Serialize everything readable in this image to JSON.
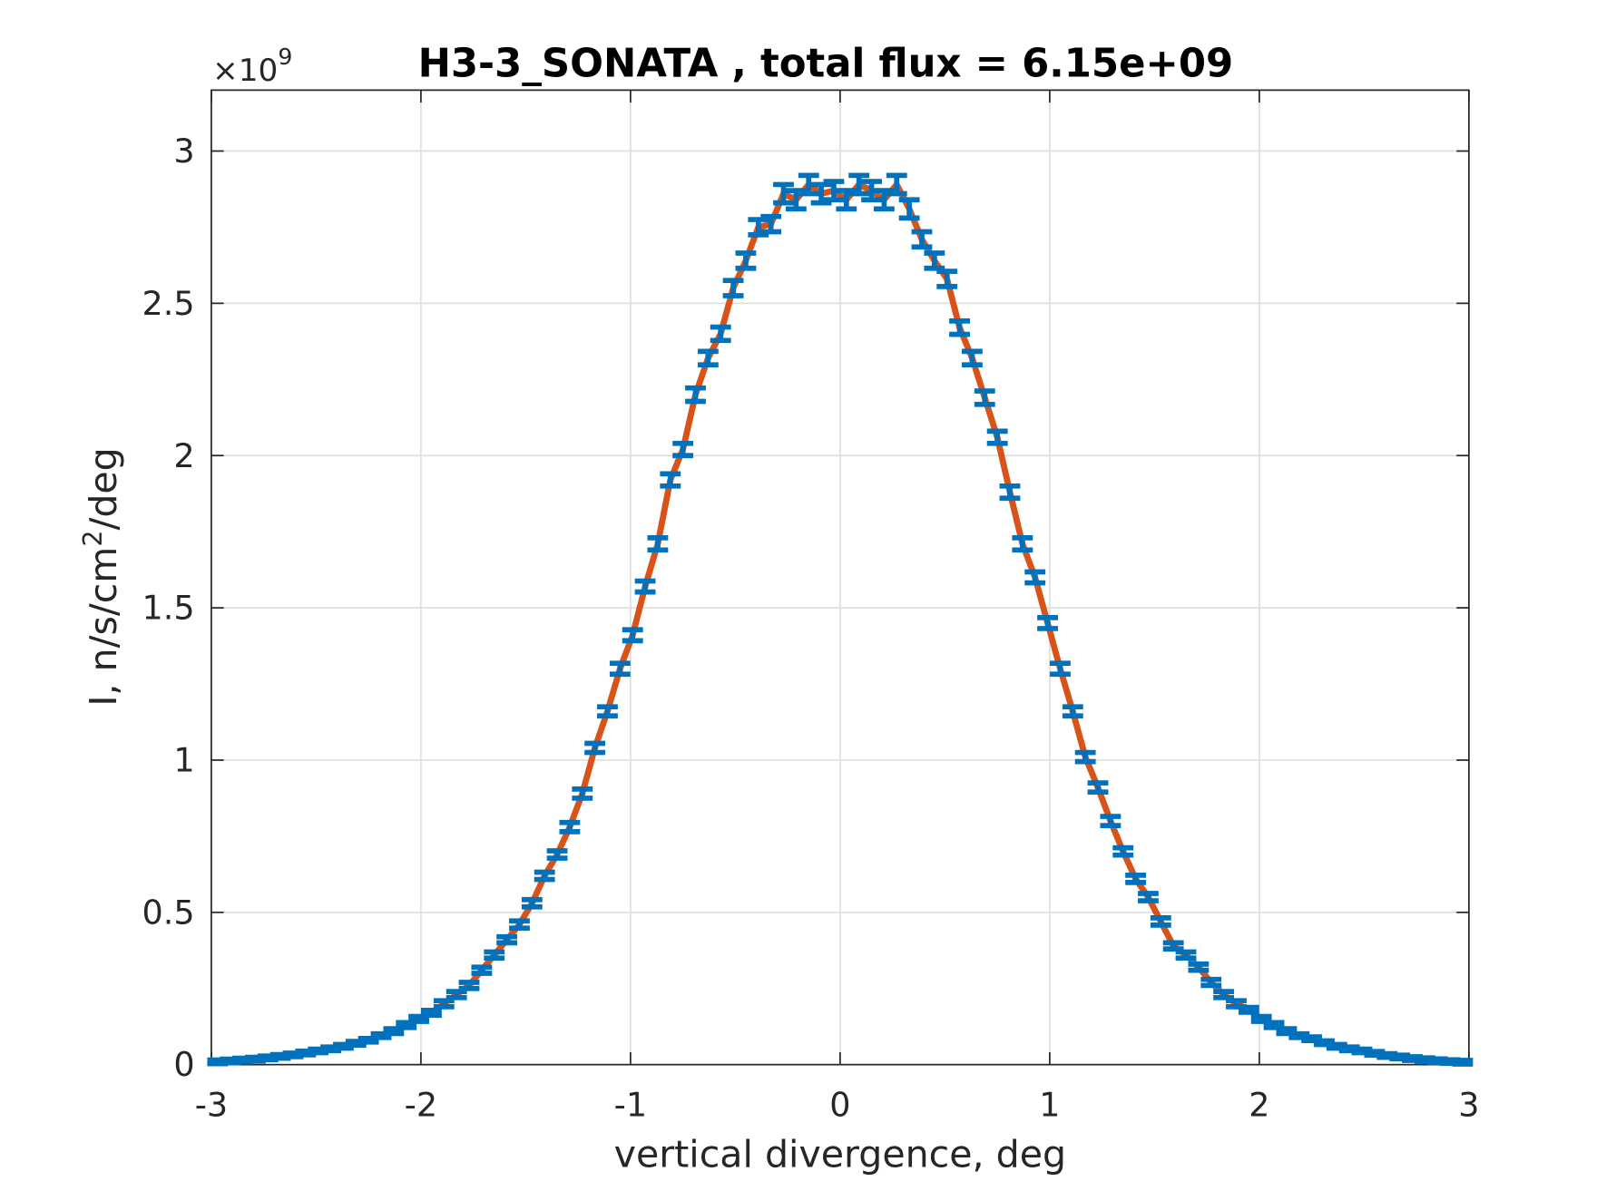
{
  "chart_data": {
    "type": "errorbar",
    "title": "H3-3_SONATA , total flux =  6.15e+09",
    "xlabel": "vertical divergence, deg",
    "ylabel": [
      "I, n/s/cm",
      "2",
      "/deg"
    ],
    "y_exponent": [
      "×10",
      "9"
    ],
    "xlim": [
      -3,
      3
    ],
    "ylim": [
      0,
      3.2
    ],
    "xticks": [
      -3,
      -2,
      -1,
      0,
      1,
      2,
      3
    ],
    "yticks": [
      0,
      0.5,
      1,
      1.5,
      2,
      2.5,
      3
    ],
    "grid": true,
    "x": [
      -2.97,
      -2.91,
      -2.85,
      -2.79,
      -2.73,
      -2.67,
      -2.61,
      -2.55,
      -2.49,
      -2.43,
      -2.37,
      -2.31,
      -2.25,
      -2.19,
      -2.13,
      -2.07,
      -2.01,
      -1.95,
      -1.89,
      -1.83,
      -1.77,
      -1.71,
      -1.65,
      -1.59,
      -1.53,
      -1.47,
      -1.41,
      -1.35,
      -1.29,
      -1.23,
      -1.17,
      -1.11,
      -1.05,
      -0.99,
      -0.93,
      -0.87,
      -0.81,
      -0.75,
      -0.69,
      -0.63,
      -0.57,
      -0.51,
      -0.45,
      -0.39,
      -0.33,
      -0.27,
      -0.21,
      -0.15,
      -0.09,
      -0.03,
      0.03,
      0.09,
      0.15,
      0.21,
      0.27,
      0.33,
      0.39,
      0.45,
      0.51,
      0.57,
      0.63,
      0.69,
      0.75,
      0.81,
      0.87,
      0.93,
      0.99,
      1.05,
      1.11,
      1.17,
      1.23,
      1.29,
      1.35,
      1.41,
      1.47,
      1.53,
      1.59,
      1.65,
      1.71,
      1.77,
      1.83,
      1.89,
      1.95,
      2.01,
      2.07,
      2.13,
      2.19,
      2.25,
      2.31,
      2.37,
      2.43,
      2.49,
      2.55,
      2.61,
      2.67,
      2.73,
      2.79,
      2.85,
      2.91,
      2.97
    ],
    "series": [
      {
        "color": "#0072bd",
        "line_color": "#d95319",
        "values": [
          0.009,
          0.012,
          0.015,
          0.018,
          0.022,
          0.027,
          0.032,
          0.038,
          0.045,
          0.052,
          0.06,
          0.07,
          0.08,
          0.095,
          0.11,
          0.13,
          0.15,
          0.17,
          0.2,
          0.23,
          0.26,
          0.31,
          0.36,
          0.41,
          0.46,
          0.53,
          0.62,
          0.69,
          0.78,
          0.89,
          1.04,
          1.16,
          1.3,
          1.41,
          1.57,
          1.71,
          1.92,
          2.02,
          2.2,
          2.32,
          2.4,
          2.55,
          2.64,
          2.75,
          2.76,
          2.86,
          2.84,
          2.89,
          2.86,
          2.87,
          2.84,
          2.89,
          2.87,
          2.84,
          2.89,
          2.81,
          2.71,
          2.64,
          2.58,
          2.42,
          2.32,
          2.19,
          2.06,
          1.88,
          1.71,
          1.6,
          1.45,
          1.3,
          1.16,
          1.01,
          0.91,
          0.8,
          0.7,
          0.61,
          0.55,
          0.47,
          0.39,
          0.36,
          0.32,
          0.27,
          0.23,
          0.2,
          0.18,
          0.15,
          0.13,
          0.11,
          0.095,
          0.085,
          0.072,
          0.06,
          0.052,
          0.045,
          0.037,
          0.03,
          0.025,
          0.02,
          0.016,
          0.013,
          0.01,
          0.008
        ],
        "errors": [
          0.006,
          0.006,
          0.006,
          0.006,
          0.006,
          0.006,
          0.006,
          0.006,
          0.006,
          0.006,
          0.006,
          0.006,
          0.006,
          0.006,
          0.008,
          0.008,
          0.008,
          0.008,
          0.01,
          0.01,
          0.01,
          0.01,
          0.01,
          0.01,
          0.012,
          0.012,
          0.012,
          0.012,
          0.015,
          0.015,
          0.015,
          0.015,
          0.018,
          0.018,
          0.018,
          0.02,
          0.02,
          0.02,
          0.022,
          0.022,
          0.022,
          0.025,
          0.025,
          0.025,
          0.025,
          0.03,
          0.03,
          0.03,
          0.03,
          0.03,
          0.03,
          0.03,
          0.03,
          0.03,
          0.03,
          0.03,
          0.025,
          0.025,
          0.025,
          0.022,
          0.022,
          0.022,
          0.02,
          0.02,
          0.02,
          0.018,
          0.018,
          0.018,
          0.015,
          0.015,
          0.015,
          0.015,
          0.012,
          0.012,
          0.012,
          0.012,
          0.01,
          0.01,
          0.01,
          0.01,
          0.01,
          0.01,
          0.008,
          0.008,
          0.008,
          0.008,
          0.006,
          0.006,
          0.006,
          0.006,
          0.006,
          0.006,
          0.006,
          0.006,
          0.006,
          0.006,
          0.006,
          0.006,
          0.006,
          0.006
        ]
      }
    ]
  }
}
